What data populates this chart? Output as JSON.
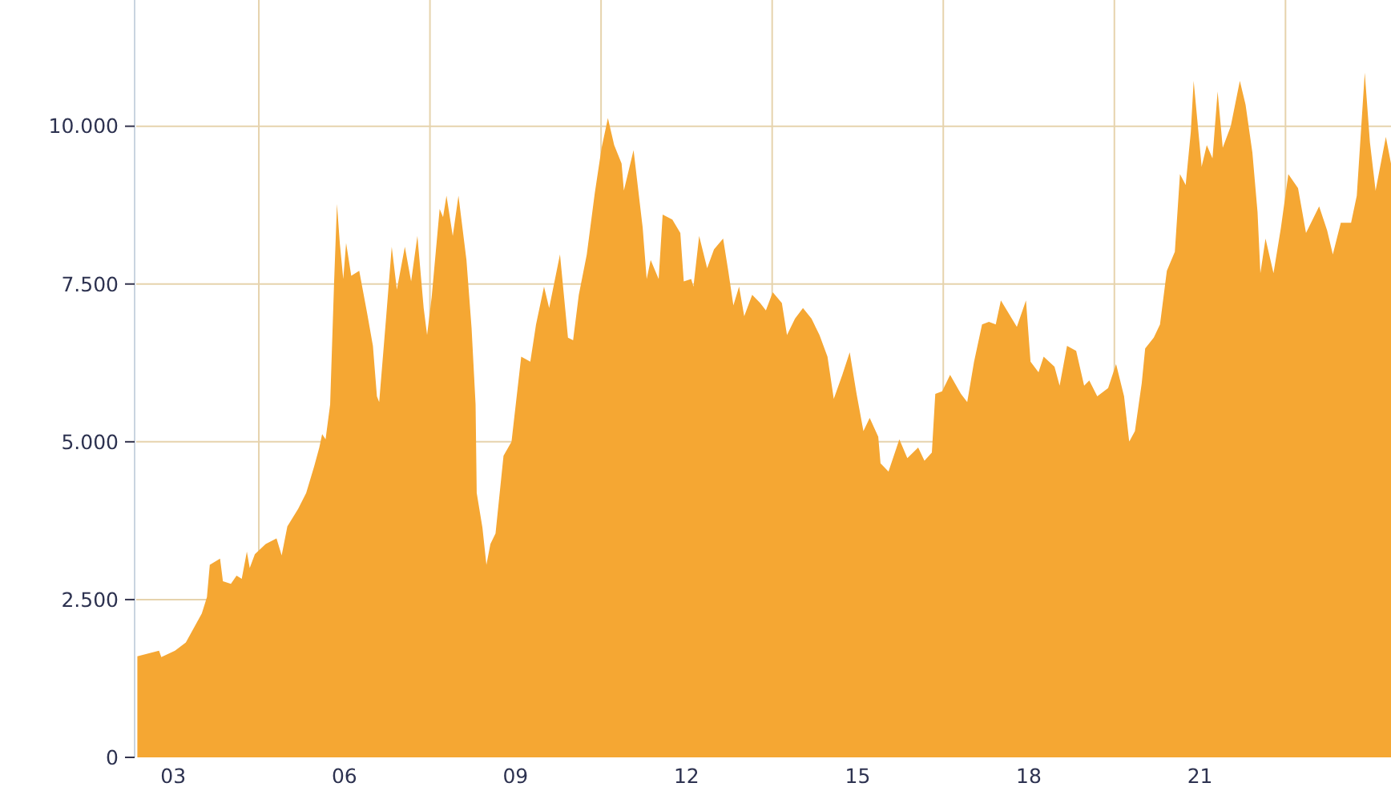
{
  "chart_data": {
    "type": "area",
    "x": [
      2002.37,
      2002.75,
      2002.79,
      2003.03,
      2003.22,
      2003.5,
      2003.59,
      2003.64,
      2003.82,
      2003.87,
      2004.01,
      2004.11,
      2004.2,
      2004.29,
      2004.34,
      2004.43,
      2004.62,
      2004.81,
      2004.9,
      2005.0,
      2005.19,
      2005.33,
      2005.47,
      2005.56,
      2005.61,
      2005.67,
      2005.75,
      2005.82,
      2005.87,
      2005.92,
      2005.98,
      2006.03,
      2006.12,
      2006.26,
      2006.4,
      2006.5,
      2006.57,
      2006.61,
      2006.73,
      2006.83,
      2006.92,
      2007.06,
      2007.17,
      2007.28,
      2007.39,
      2007.45,
      2007.53,
      2007.67,
      2007.73,
      2007.79,
      2007.9,
      2008.0,
      2008.14,
      2008.23,
      2008.3,
      2008.32,
      2008.42,
      2008.49,
      2008.56,
      2008.65,
      2008.79,
      2008.93,
      2009.1,
      2009.26,
      2009.36,
      2009.5,
      2009.59,
      2009.78,
      2009.92,
      2010.01,
      2010.11,
      2010.25,
      2010.39,
      2010.51,
      2010.62,
      2010.73,
      2010.86,
      2010.9,
      2011.07,
      2011.23,
      2011.3,
      2011.37,
      2011.51,
      2011.58,
      2011.75,
      2011.89,
      2011.95,
      2012.08,
      2012.12,
      2012.22,
      2012.36,
      2012.48,
      2012.64,
      2012.73,
      2012.82,
      2012.92,
      2013.01,
      2013.15,
      2013.29,
      2013.39,
      2013.51,
      2013.67,
      2013.76,
      2013.9,
      2014.04,
      2014.19,
      2014.33,
      2014.47,
      2014.58,
      2014.73,
      2014.86,
      2014.98,
      2015.1,
      2015.21,
      2015.36,
      2015.4,
      2015.54,
      2015.73,
      2015.87,
      2016.06,
      2016.17,
      2016.3,
      2016.36,
      2016.48,
      2016.62,
      2016.81,
      2016.92,
      2017.04,
      2017.18,
      2017.3,
      2017.42,
      2017.51,
      2017.65,
      2017.79,
      2017.95,
      2018.03,
      2018.17,
      2018.26,
      2018.45,
      2018.54,
      2018.67,
      2018.83,
      2018.97,
      2019.06,
      2019.2,
      2019.39,
      2019.53,
      2019.67,
      2019.76,
      2019.86,
      2019.98,
      2020.04,
      2020.19,
      2020.3,
      2020.42,
      2020.56,
      2020.65,
      2020.75,
      2020.84,
      2020.89,
      2021.03,
      2021.12,
      2021.22,
      2021.31,
      2021.4,
      2021.54,
      2021.7,
      2021.8,
      2021.92,
      2022.01,
      2022.06,
      2022.15,
      2022.29,
      2022.42,
      2022.55,
      2022.72,
      2022.86,
      2023.09,
      2023.23,
      2023.33,
      2023.47,
      2023.65,
      2023.75,
      2023.89,
      2023.98,
      2024.08,
      2024.26,
      2024.35
    ],
    "series": [
      {
        "color": "#f5a733",
        "values": [
          1600,
          1690,
          1590,
          1690,
          1820,
          2280,
          2540,
          3050,
          3150,
          2790,
          2750,
          2880,
          2830,
          3260,
          3000,
          3220,
          3380,
          3470,
          3200,
          3660,
          3940,
          4190,
          4610,
          4910,
          5120,
          5040,
          5590,
          7540,
          8770,
          8140,
          7580,
          8150,
          7630,
          7710,
          7030,
          6520,
          5720,
          5630,
          6950,
          8090,
          7410,
          8090,
          7540,
          8260,
          7120,
          6690,
          7290,
          8690,
          8560,
          8900,
          8260,
          8900,
          7880,
          6800,
          5590,
          4190,
          3640,
          3050,
          3380,
          3550,
          4780,
          5000,
          6350,
          6270,
          6860,
          7460,
          7120,
          7970,
          6650,
          6610,
          7330,
          7970,
          8940,
          9660,
          10130,
          9700,
          9410,
          8980,
          9620,
          8390,
          7580,
          7880,
          7580,
          8600,
          8520,
          8310,
          7540,
          7580,
          7460,
          8260,
          7750,
          8050,
          8220,
          7710,
          7160,
          7460,
          6990,
          7330,
          7200,
          7080,
          7370,
          7200,
          6690,
          6950,
          7120,
          6950,
          6690,
          6350,
          5680,
          6060,
          6420,
          5760,
          5170,
          5380,
          5080,
          4660,
          4530,
          5040,
          4740,
          4910,
          4700,
          4830,
          5760,
          5800,
          6060,
          5760,
          5630,
          6270,
          6860,
          6900,
          6860,
          7240,
          7030,
          6820,
          7240,
          6270,
          6100,
          6350,
          6190,
          5890,
          6520,
          6440,
          5890,
          5970,
          5720,
          5850,
          6230,
          5720,
          5000,
          5170,
          5930,
          6480,
          6650,
          6860,
          7710,
          8010,
          9240,
          9070,
          9910,
          10720,
          9360,
          9700,
          9490,
          10550,
          9660,
          10000,
          10720,
          10340,
          9580,
          8640,
          7670,
          8220,
          7670,
          8390,
          9240,
          9020,
          8310,
          8730,
          8350,
          7970,
          8470,
          8470,
          8900,
          10850,
          9750,
          8980,
          9830,
          9410
        ]
      }
    ],
    "xlim": [
      2002.35,
      2024.35
    ],
    "xticks": [
      {
        "value": 2003,
        "label": "03"
      },
      {
        "value": 2006,
        "label": "06"
      },
      {
        "value": 2009,
        "label": "09"
      },
      {
        "value": 2012,
        "label": "12"
      },
      {
        "value": 2015,
        "label": "15"
      },
      {
        "value": 2018,
        "label": "18"
      },
      {
        "value": 2021,
        "label": "21"
      },
      {
        "value": 2004.5,
        "label": null
      },
      {
        "value": 2007.5,
        "label": null
      },
      {
        "value": 2010.5,
        "label": null
      },
      {
        "value": 2013.5,
        "label": null
      },
      {
        "value": 2016.5,
        "label": null
      },
      {
        "value": 2019.5,
        "label": null
      },
      {
        "value": 2022.5,
        "label": null
      }
    ],
    "ylim": [
      0,
      12000
    ],
    "yticks": [
      {
        "value": 0,
        "label": "0"
      },
      {
        "value": 2500,
        "label": "2.500"
      },
      {
        "value": 5000,
        "label": "5.000"
      },
      {
        "value": 7500,
        "label": "7.500"
      },
      {
        "value": 10000,
        "label": "10.000"
      }
    ],
    "grid": true
  }
}
